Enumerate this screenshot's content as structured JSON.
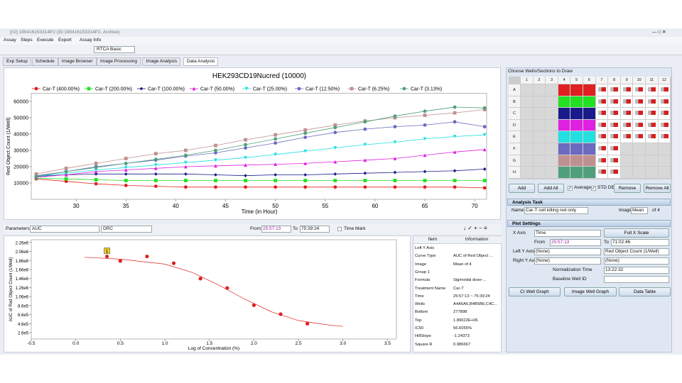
{
  "window": {
    "title": "[#2] 190416153314P2 (ID:190416153314P2, Archive)"
  },
  "menu": [
    "Assay",
    "Steps",
    "Execute",
    "Export",
    "Assay Info"
  ],
  "toolbar": {
    "mode": "RTCA Basic"
  },
  "tabs": [
    "Exp Setup",
    "Schedule",
    "Image Browser",
    "Image Processing",
    "Image Analysis",
    "Data Analysis"
  ],
  "chart_data": [
    {
      "type": "line",
      "title": "HEK293CD19Nucred (10000)",
      "x_label": "Time (in Hour)",
      "y_label": "Red Object Count (1/Well)",
      "xlim": [
        25.5,
        71.2
      ],
      "xticks": [
        30,
        35,
        40,
        45,
        50,
        55,
        60,
        65,
        70
      ],
      "ylim": [
        0,
        65000
      ],
      "yticks": [
        10000,
        20000,
        30000,
        40000,
        50000,
        60000
      ],
      "x": [
        26,
        29,
        32,
        35,
        38,
        41,
        44,
        47,
        50,
        53,
        56,
        59,
        62,
        65,
        68,
        71
      ],
      "series": [
        {
          "name": "Car-T (400.00%)",
          "color": "#e02020",
          "marker": "circle",
          "values": [
            12500,
            11000,
            9500,
            8500,
            8000,
            7500,
            7500,
            7500,
            7500,
            7500,
            7500,
            7500,
            7500,
            7500,
            7500,
            7000
          ]
        },
        {
          "name": "Car-T (200.00%)",
          "color": "#22e022",
          "marker": "square",
          "values": [
            13000,
            12500,
            12000,
            11500,
            11500,
            11500,
            11500,
            11500,
            11500,
            11500,
            11500,
            11500,
            11500,
            11500,
            11500,
            11500
          ]
        },
        {
          "name": "Car-T (100.00%)",
          "color": "#1a1a8c",
          "marker": "diamond",
          "values": [
            14000,
            15000,
            15500,
            15500,
            15500,
            15500,
            15000,
            14500,
            15000,
            15000,
            15500,
            16000,
            16500,
            17000,
            17500,
            18500
          ]
        },
        {
          "name": "Car-T (50.00%)",
          "color": "#e020e0",
          "marker": "triangle",
          "values": [
            13500,
            15000,
            17000,
            18000,
            19000,
            20000,
            20500,
            21000,
            21500,
            22000,
            23000,
            24000,
            25000,
            27000,
            29000,
            30500
          ]
        },
        {
          "name": "Car-T (25.00%)",
          "color": "#22e0e0",
          "marker": "triangle-down",
          "values": [
            14000,
            16000,
            18000,
            19500,
            21000,
            22500,
            24000,
            25500,
            27500,
            29500,
            31500,
            33500,
            35000,
            37000,
            38500,
            39500
          ]
        },
        {
          "name": "Car-T (12.50%)",
          "color": "#6a6ac0",
          "marker": "circle",
          "values": [
            14500,
            17000,
            20000,
            22000,
            24000,
            26500,
            28500,
            31500,
            34500,
            38000,
            41000,
            43000,
            44500,
            45500,
            47500,
            44500
          ]
        },
        {
          "name": "Car-T (6.25%)",
          "color": "#c09090",
          "marker": "square",
          "values": [
            15500,
            19000,
            22000,
            25000,
            28000,
            30000,
            33000,
            36500,
            39500,
            42500,
            45500,
            48000,
            50000,
            51500,
            53000,
            55000
          ]
        },
        {
          "name": "Car-T (3.13%)",
          "color": "#4fa07a",
          "marker": "circle",
          "values": [
            14000,
            17000,
            19500,
            22000,
            24500,
            27000,
            30000,
            33500,
            37000,
            40500,
            44000,
            47500,
            51000,
            54000,
            56500,
            56000
          ]
        }
      ]
    },
    {
      "type": "scatter",
      "x_label": "Log of Concentration (%)",
      "y_label": "AUC of Red Object Count (1/Well)",
      "xlim": [
        -0.5,
        3.6
      ],
      "xticks": [
        -0.5,
        {
          "value": 0,
          "label": "0.0"
        },
        0.5,
        {
          "value": 1,
          "label": "1.0"
        },
        1.5,
        {
          "value": 2,
          "label": "2.0"
        },
        2.5,
        {
          "value": 3,
          "label": "3.0"
        },
        3.5
      ],
      "ylim": [
        120000,
        2320000
      ],
      "yticks": [
        {
          "value": 260000,
          "label": "2.6e5"
        },
        {
          "value": 460000,
          "label": "4.6e5"
        },
        {
          "value": 660000,
          "label": "6.6e5"
        },
        {
          "value": 860000,
          "label": "8.6e5"
        },
        {
          "value": 1060000,
          "label": "1.06e6"
        },
        {
          "value": 1260000,
          "label": "1.26e6"
        },
        {
          "value": 1460000,
          "label": "1.46e6"
        },
        {
          "value": 1660000,
          "label": "1.66e6"
        },
        {
          "value": 1860000,
          "label": "1.86e6"
        },
        {
          "value": 2060000,
          "label": "2.06e6"
        },
        {
          "value": 2260000,
          "label": "2.26e6"
        }
      ],
      "color": "#e02020",
      "marker_label": "1",
      "x": [
        0.35,
        0.5,
        0.8,
        1.1,
        1.4,
        1.7,
        2.0,
        2.3,
        2.6
      ],
      "values": [
        1950000,
        1850000,
        1950000,
        1800000,
        1460000,
        1250000,
        870000,
        670000,
        460000
      ],
      "fit": {
        "x": [
          0.1,
          0.5,
          1.0,
          1.3,
          1.6,
          1.9,
          2.2,
          2.5,
          2.8,
          3.0
        ],
        "values": [
          1930000,
          1890000,
          1780000,
          1600000,
          1320000,
          1000000,
          720000,
          530000,
          440000,
          400000
        ]
      }
    }
  ],
  "params": {
    "label": "Parameters",
    "param": "AUC",
    "method": "DRC",
    "from_label": "From",
    "from": "25:57:13",
    "to_label": "To",
    "to": "75:39:24",
    "time_mark": "Time Mark"
  },
  "table": {
    "header": [
      "Item",
      "Information"
    ],
    "rows": [
      [
        "Left Y Axis"
      ],
      [
        "Curve Type",
        "AUC of Red Object ..."
      ],
      [
        "Image",
        "Mean of 4"
      ],
      [
        "Group 1"
      ],
      [
        "Formula",
        "Sigmoidal dose-..."
      ],
      [
        "Treatment Name",
        "Car-T"
      ],
      [
        "Time",
        "25:57:13 ~ 75:39:24"
      ],
      [
        "Wells",
        "A4A5A6,B4B5B6,C4C..."
      ],
      [
        "Bottom",
        "277898"
      ],
      [
        "Top",
        "1.89022E+06"
      ],
      [
        "IC50",
        "56.6055%"
      ],
      [
        "HillSlope",
        "-1.24373"
      ],
      [
        "Square R",
        "0.986667"
      ]
    ]
  },
  "plate": {
    "title": "Choose Wells/Sections to Draw",
    "columns": [
      "1",
      "2",
      "3",
      "4",
      "5",
      "6",
      "7",
      "8",
      "9",
      "10",
      "11",
      "12"
    ],
    "rows": [
      "A",
      "B",
      "C",
      "D",
      "E",
      "F",
      "G",
      "H"
    ],
    "buttons": [
      "Add",
      "Add All",
      "Remove",
      "Remove All"
    ],
    "checks": [
      "Average",
      "STD DEV"
    ]
  },
  "analysis_task": {
    "title": "Analysis Task",
    "name_label": "Name",
    "name": "Car-T cell killing red only",
    "image_label": "Image",
    "image": "Mean",
    "of": "of 4"
  },
  "plot_settings": {
    "title": "Plot Settings",
    "x_axis_label": "X Axis",
    "x_axis": "Time",
    "full_scale": "Full X Scale",
    "from_label": "From",
    "from": "25:57:13",
    "to_label": "To",
    "to": "71:02:46",
    "left_y_label": "Left Y Axis",
    "left_y": "(None)",
    "left_y2": "Red Object Count (1/Well)",
    "right_y_label": "Right Y Axis",
    "right_y": "(None)",
    "right_y2": "(None)",
    "norm_label": "Normalization Time",
    "norm": "13:22:32",
    "baseline_label": "Baseline Well ID",
    "buttons": [
      "CI Well Graph",
      "Image Well Graph",
      "Data Table"
    ]
  }
}
